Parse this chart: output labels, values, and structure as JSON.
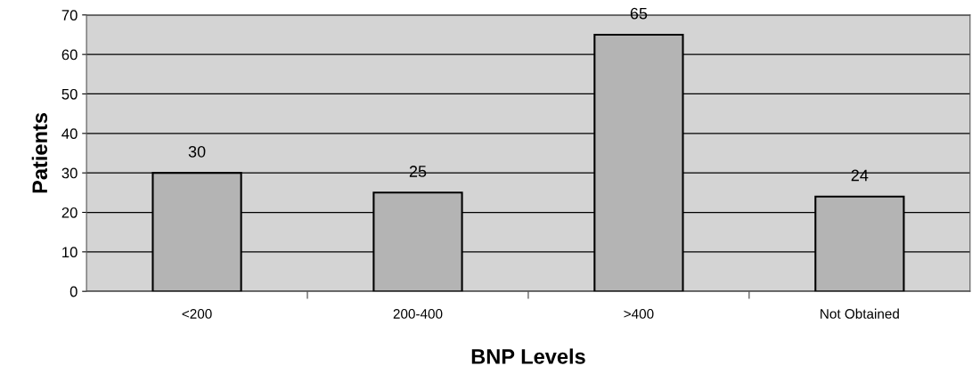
{
  "chart_data": {
    "type": "bar",
    "xlabel": "BNP Levels",
    "ylabel": "Patients",
    "categories": [
      "<200",
      "200-400",
      ">400",
      "Not Obtained"
    ],
    "values": [
      30,
      25,
      65,
      24
    ],
    "color": "#b4b4b4",
    "ylim": [
      0,
      70
    ],
    "yticks": [
      0,
      10,
      20,
      30,
      40,
      50,
      60,
      70
    ],
    "grid": "y",
    "data_labels": true
  }
}
